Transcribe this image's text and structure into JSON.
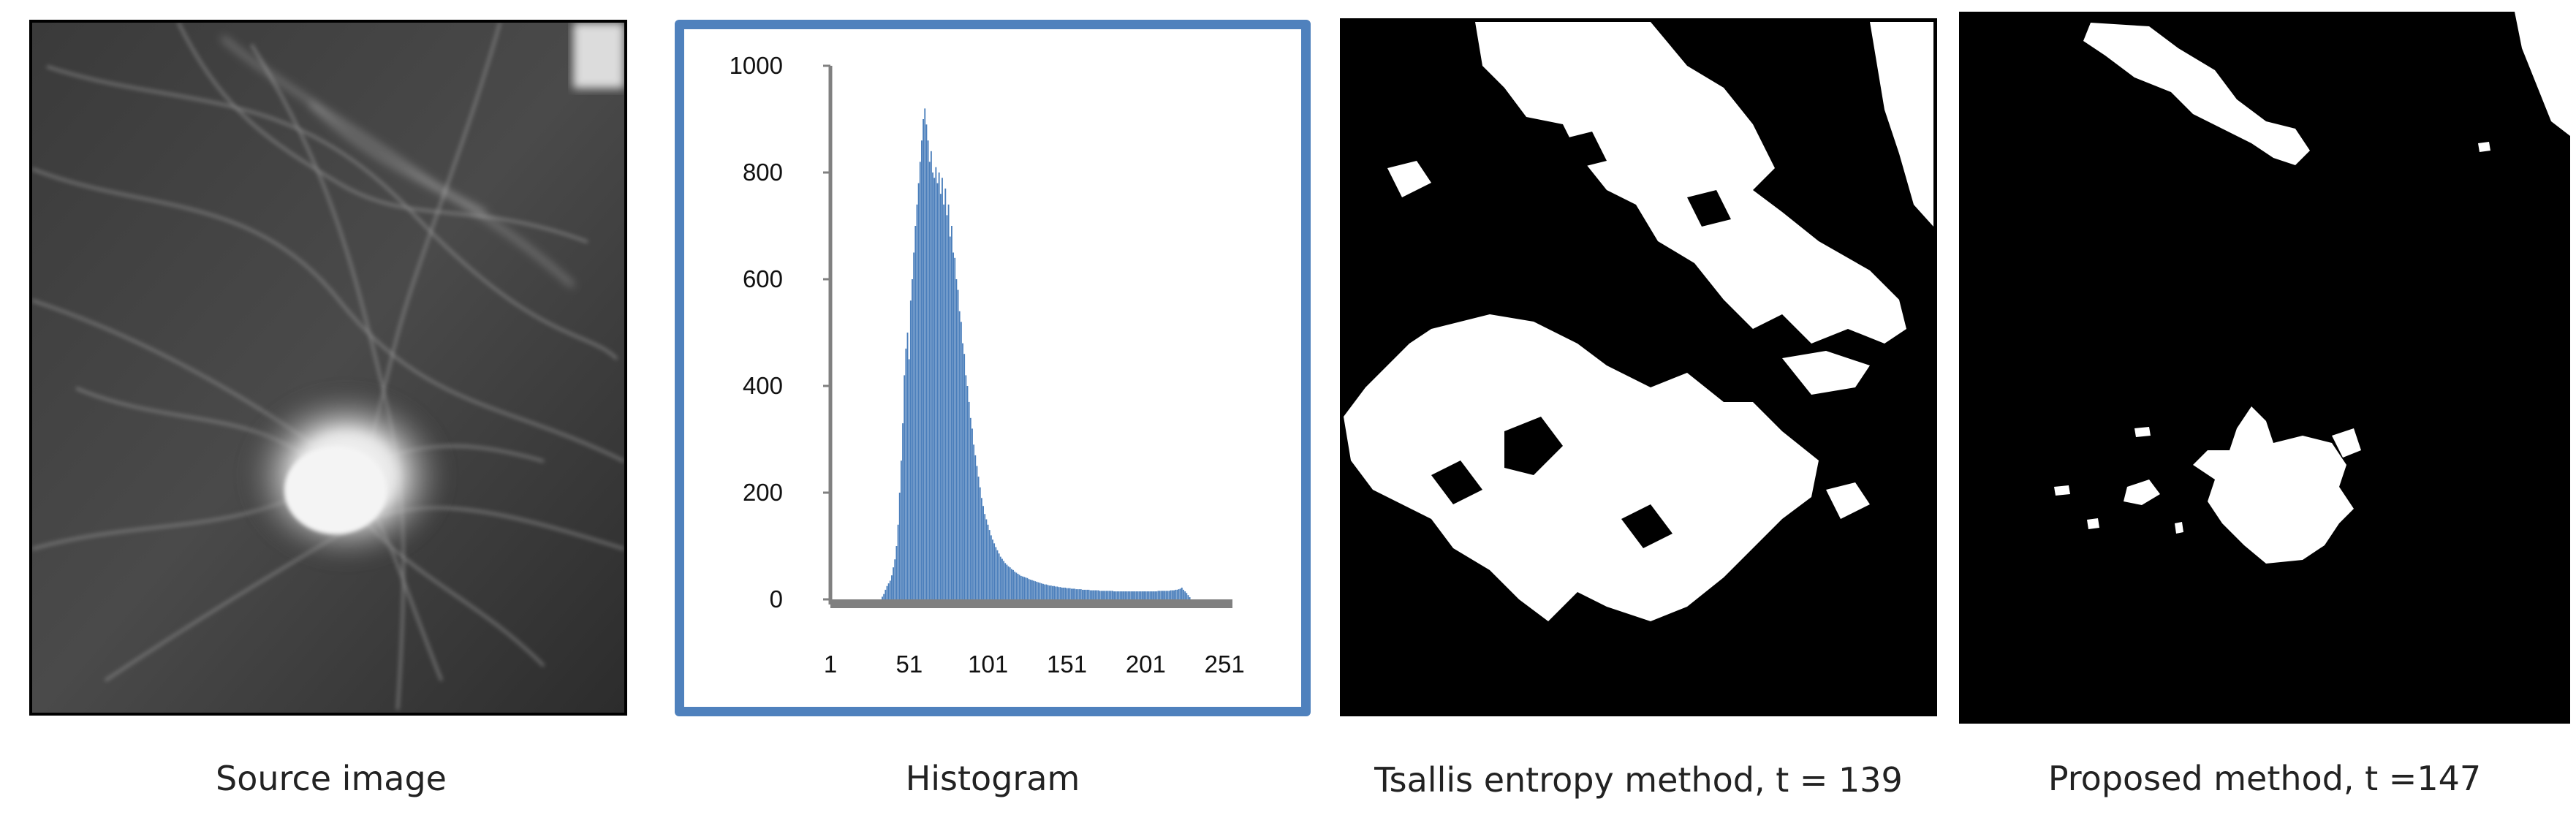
{
  "panels": [
    {
      "caption": "Source image",
      "content": "mammogram-region-of-interest"
    },
    {
      "caption": "Histogram",
      "content": "gray-level-histogram"
    },
    {
      "caption": "Tsallis entropy method, t = 139",
      "content": "binary-segmentation"
    },
    {
      "caption": "Proposed method, t =147",
      "content": "binary-segmentation"
    }
  ],
  "colors": {
    "bars": "#4a7ebb",
    "frame": "#4f81bd",
    "axis": "#808080",
    "foreground": "#ffffff",
    "background": "#000000"
  },
  "chart_data": {
    "type": "bar",
    "title": "",
    "xlabel": "",
    "ylabel": "",
    "ylim": [
      0,
      1000
    ],
    "xlim": [
      1,
      256
    ],
    "yticks": [
      "0",
      "200",
      "400",
      "600",
      "800",
      "1000"
    ],
    "xticks": [
      "1",
      "51",
      "101",
      "151",
      "201",
      "251"
    ],
    "grid": false,
    "legend": "none",
    "x_start": 1,
    "values": [
      0,
      0,
      0,
      0,
      0,
      0,
      0,
      0,
      0,
      0,
      0,
      0,
      0,
      0,
      0,
      0,
      0,
      0,
      0,
      0,
      0,
      0,
      0,
      0,
      0,
      0,
      0,
      0,
      0,
      0,
      0,
      0,
      0,
      5,
      10,
      18,
      25,
      30,
      35,
      45,
      60,
      75,
      100,
      140,
      200,
      260,
      330,
      420,
      470,
      500,
      450,
      560,
      600,
      650,
      700,
      740,
      780,
      820,
      860,
      900,
      920,
      890,
      860,
      820,
      840,
      800,
      790,
      810,
      780,
      800,
      760,
      790,
      740,
      770,
      720,
      740,
      680,
      700,
      650,
      640,
      600,
      580,
      540,
      520,
      480,
      460,
      420,
      400,
      370,
      340,
      320,
      290,
      270,
      250,
      230,
      210,
      190,
      175,
      160,
      150,
      140,
      130,
      120,
      112,
      105,
      98,
      92,
      86,
      80,
      76,
      72,
      68,
      65,
      62,
      60,
      57,
      55,
      52,
      50,
      48,
      46,
      44,
      43,
      42,
      41,
      40,
      38,
      37,
      36,
      35,
      34,
      33,
      32,
      31,
      30,
      29,
      28,
      28,
      27,
      26,
      26,
      25,
      25,
      24,
      24,
      23,
      23,
      22,
      22,
      22,
      21,
      21,
      21,
      20,
      20,
      20,
      19,
      19,
      19,
      19,
      18,
      18,
      18,
      18,
      18,
      17,
      17,
      17,
      17,
      17,
      17,
      16,
      16,
      16,
      16,
      16,
      16,
      16,
      16,
      16,
      15,
      15,
      15,
      15,
      15,
      15,
      15,
      15,
      15,
      15,
      15,
      15,
      15,
      15,
      15,
      15,
      15,
      15,
      15,
      15,
      15,
      15,
      15,
      15,
      15,
      15,
      15,
      15,
      16,
      16,
      16,
      16,
      16,
      16,
      16,
      16,
      17,
      17,
      17,
      18,
      18,
      19,
      20,
      22,
      18,
      15,
      12,
      8,
      4,
      0,
      0,
      0,
      0
    ]
  }
}
